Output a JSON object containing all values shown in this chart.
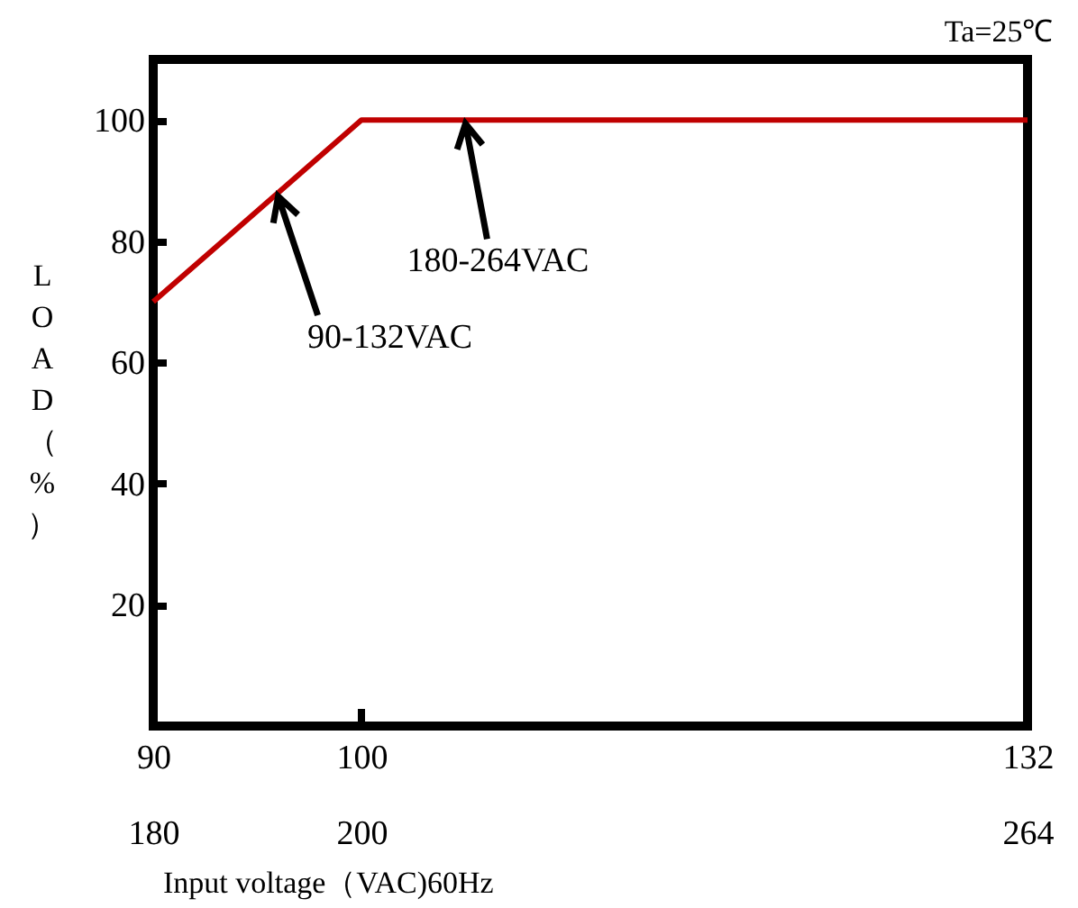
{
  "chart_data": {
    "type": "line",
    "xlabel": "Input voltage（VAC)60Hz",
    "ylabel": "LOAD（%）",
    "x": [
      90,
      100,
      132
    ],
    "series": [
      {
        "color": "#c00000",
        "values": [
          70,
          100,
          100
        ]
      }
    ],
    "xlim": [
      90,
      132
    ],
    "xticks": [
      90,
      100,
      132
    ],
    "x2lim": [
      180,
      264
    ],
    "x2ticks": [
      180,
      200,
      264
    ],
    "ylim": [
      0,
      110
    ],
    "yticks": [
      20,
      40,
      60,
      80,
      100
    ],
    "grid": false,
    "marker": "none",
    "line_style": "solid",
    "annotations": [
      "Ta=25℃",
      {
        "text": "90-132VAC",
        "x": 96,
        "y": 88
      },
      {
        "text": "180-264VAC",
        "x": 105,
        "y": 100
      }
    ]
  }
}
